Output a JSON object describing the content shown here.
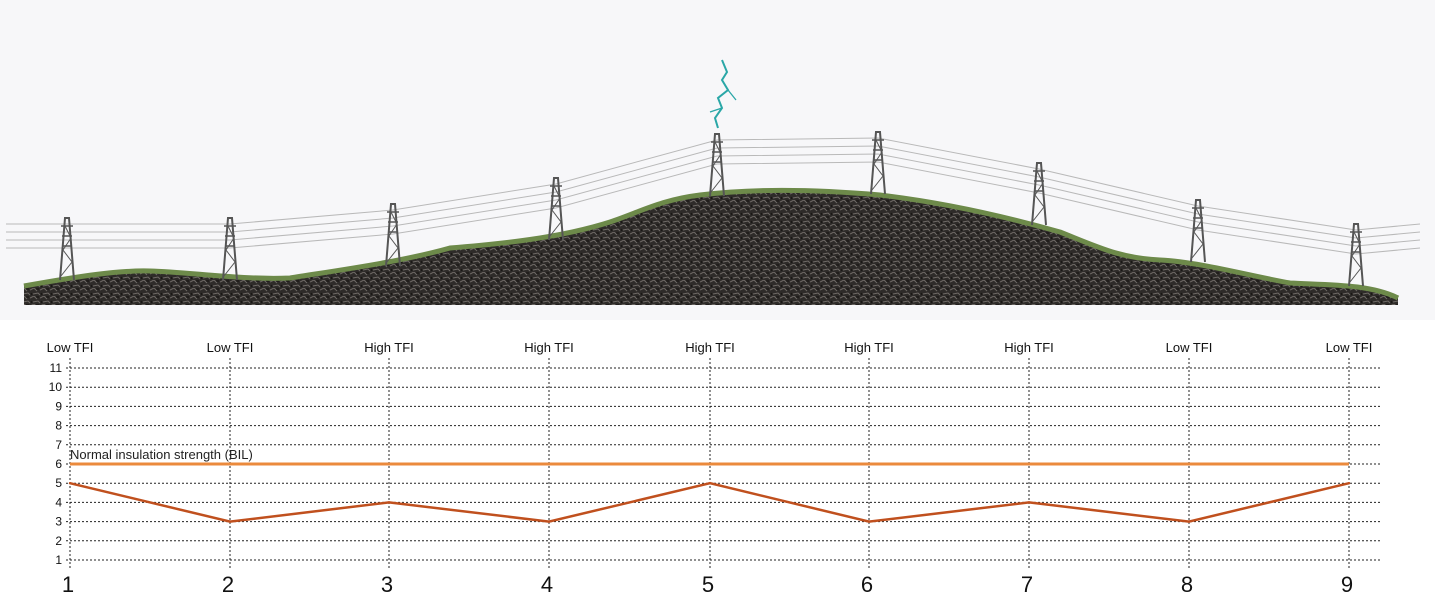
{
  "scene": {
    "sky_color": "#f7f7f9",
    "grass_color": "#6d8a4a",
    "rock_color": "#2e2b29",
    "lightning_color": "#2aa7a7",
    "line_color": "#b9b9b9",
    "tower_color": "#555555"
  },
  "chart_data": {
    "type": "line",
    "categories": [
      "1",
      "2",
      "3",
      "4",
      "5",
      "6",
      "7",
      "8",
      "9"
    ],
    "top_labels": [
      "Low TFI",
      "Low TFI",
      "High TFI",
      "High TFI",
      "High TFI",
      "High TFI",
      "High TFI",
      "Low TFI",
      "Low TFI"
    ],
    "ylim": [
      1,
      11
    ],
    "yticks": [
      "1",
      "2",
      "3",
      "4",
      "5",
      "6",
      "7",
      "8",
      "9",
      "10",
      "11"
    ],
    "grid": true,
    "series": [
      {
        "values": [
          5,
          3,
          4,
          3,
          5,
          3,
          4,
          3,
          5
        ],
        "color": "#c0501e"
      }
    ],
    "reference_lines": [
      {
        "label": "Normal insulation strength (BIL)",
        "value": 6,
        "color": "#eb8a3c"
      }
    ]
  }
}
